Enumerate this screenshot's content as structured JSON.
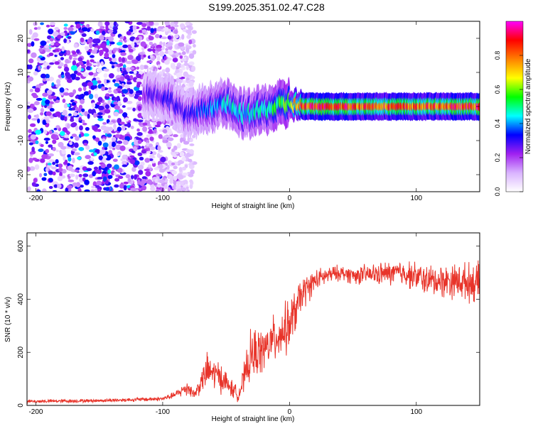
{
  "title": "S199.2025.351.02.47.C28",
  "chart_data": [
    {
      "type": "heatmap",
      "xlabel": "Height of straight line (km)",
      "ylabel": "Frequency (Hz)",
      "xlim": [
        -207,
        150
      ],
      "ylim": [
        -25,
        25
      ],
      "xticks": [
        -200,
        -100,
        0,
        100
      ],
      "yticks": [
        -20,
        -10,
        0,
        10,
        20
      ],
      "colorbar": {
        "label": "Normalized spectral amplitude",
        "range": [
          0.0,
          1.0
        ],
        "ticks": [
          0.0,
          0.2,
          0.4,
          0.6,
          0.8
        ],
        "colors": [
          "#ffffff",
          "#d9b3ff",
          "#a020f0",
          "#0000ff",
          "#00ffff",
          "#00ff00",
          "#ffff00",
          "#ff8000",
          "#ff0000",
          "#ff00ff"
        ]
      },
      "description_of_signal": {
        "noise_region_x": [
          -207,
          -85
        ],
        "signal_centerline": [
          {
            "x": -115,
            "freq": 4,
            "amp": 0.25
          },
          {
            "x": -100,
            "freq": 3,
            "amp": 0.3
          },
          {
            "x": -90,
            "freq": 1,
            "amp": 0.3
          },
          {
            "x": -80,
            "freq": -3,
            "amp": 0.3
          },
          {
            "x": -70,
            "freq": -1,
            "amp": 0.35
          },
          {
            "x": -60,
            "freq": 0,
            "amp": 0.4
          },
          {
            "x": -50,
            "freq": 1,
            "amp": 0.45
          },
          {
            "x": -40,
            "freq": -2,
            "amp": 0.45
          },
          {
            "x": -30,
            "freq": -2,
            "amp": 0.5
          },
          {
            "x": -20,
            "freq": -1,
            "amp": 0.5
          },
          {
            "x": -10,
            "freq": 0,
            "amp": 0.55
          },
          {
            "x": 0,
            "freq": 1,
            "amp": 0.6
          },
          {
            "x": 10,
            "freq": 0,
            "amp": 0.9
          },
          {
            "x": 50,
            "freq": 0,
            "amp": 0.9
          },
          {
            "x": 100,
            "freq": 0,
            "amp": 0.85
          },
          {
            "x": 150,
            "freq": 0,
            "amp": 0.9
          }
        ]
      }
    },
    {
      "type": "line",
      "xlabel": "Height of straight line (km)",
      "ylabel": "SNR (10 * v/v)",
      "xlim": [
        -207,
        150
      ],
      "ylim": [
        0,
        650
      ],
      "xticks": [
        -200,
        -100,
        0,
        100
      ],
      "yticks": [
        0,
        200,
        400,
        600
      ],
      "color": "#e8342a",
      "series": [
        {
          "name": "SNR",
          "x": [
            -207,
            -150,
            -100,
            -90,
            -80,
            -75,
            -65,
            -55,
            -45,
            -40,
            -30,
            -20,
            -10,
            0,
            10,
            20,
            30,
            40,
            50,
            70,
            90,
            110,
            130,
            150
          ],
          "mean": [
            15,
            18,
            25,
            40,
            70,
            40,
            130,
            110,
            60,
            40,
            190,
            210,
            260,
            300,
            420,
            470,
            490,
            500,
            490,
            495,
            500,
            470,
            470,
            460
          ],
          "spread": [
            8,
            8,
            10,
            15,
            40,
            20,
            80,
            70,
            40,
            30,
            120,
            100,
            110,
            120,
            80,
            50,
            40,
            35,
            40,
            50,
            60,
            70,
            80,
            90
          ]
        }
      ]
    }
  ]
}
